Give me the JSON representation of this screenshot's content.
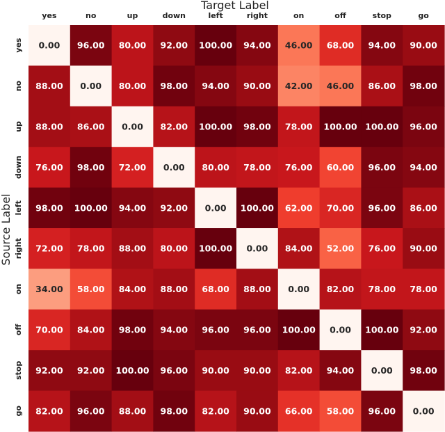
{
  "chart_data": {
    "type": "heatmap",
    "xlabel": "Target Label",
    "ylabel": "Source Label",
    "x_categories": [
      "yes",
      "no",
      "up",
      "down",
      "left",
      "right",
      "on",
      "off",
      "stop",
      "go"
    ],
    "y_categories": [
      "yes",
      "no",
      "up",
      "down",
      "left",
      "right",
      "on",
      "off",
      "stop",
      "go"
    ],
    "values": [
      [
        0.0,
        96.0,
        80.0,
        92.0,
        100.0,
        94.0,
        46.0,
        68.0,
        94.0,
        90.0
      ],
      [
        88.0,
        0.0,
        80.0,
        98.0,
        94.0,
        90.0,
        42.0,
        46.0,
        86.0,
        98.0
      ],
      [
        88.0,
        86.0,
        0.0,
        82.0,
        100.0,
        98.0,
        78.0,
        100.0,
        100.0,
        96.0
      ],
      [
        76.0,
        98.0,
        72.0,
        0.0,
        80.0,
        78.0,
        76.0,
        60.0,
        96.0,
        94.0
      ],
      [
        98.0,
        100.0,
        94.0,
        92.0,
        0.0,
        100.0,
        62.0,
        70.0,
        96.0,
        86.0
      ],
      [
        72.0,
        78.0,
        88.0,
        80.0,
        100.0,
        0.0,
        84.0,
        52.0,
        76.0,
        90.0
      ],
      [
        34.0,
        58.0,
        84.0,
        88.0,
        68.0,
        88.0,
        0.0,
        82.0,
        78.0,
        78.0
      ],
      [
        70.0,
        84.0,
        98.0,
        94.0,
        96.0,
        96.0,
        100.0,
        0.0,
        100.0,
        92.0
      ],
      [
        92.0,
        92.0,
        100.0,
        96.0,
        90.0,
        90.0,
        82.0,
        94.0,
        0.0,
        98.0
      ],
      [
        82.0,
        96.0,
        88.0,
        98.0,
        82.0,
        90.0,
        66.0,
        58.0,
        96.0,
        0.0
      ]
    ],
    "value_format": "2 decimals",
    "colormap": "Reds",
    "vmin": 0,
    "vmax": 100,
    "colors": {
      "low": "#fff5f0",
      "high": "#67000d",
      "text_dark": "#262626",
      "text_light": "#ffffff"
    },
    "legend": "none",
    "grid": false
  }
}
